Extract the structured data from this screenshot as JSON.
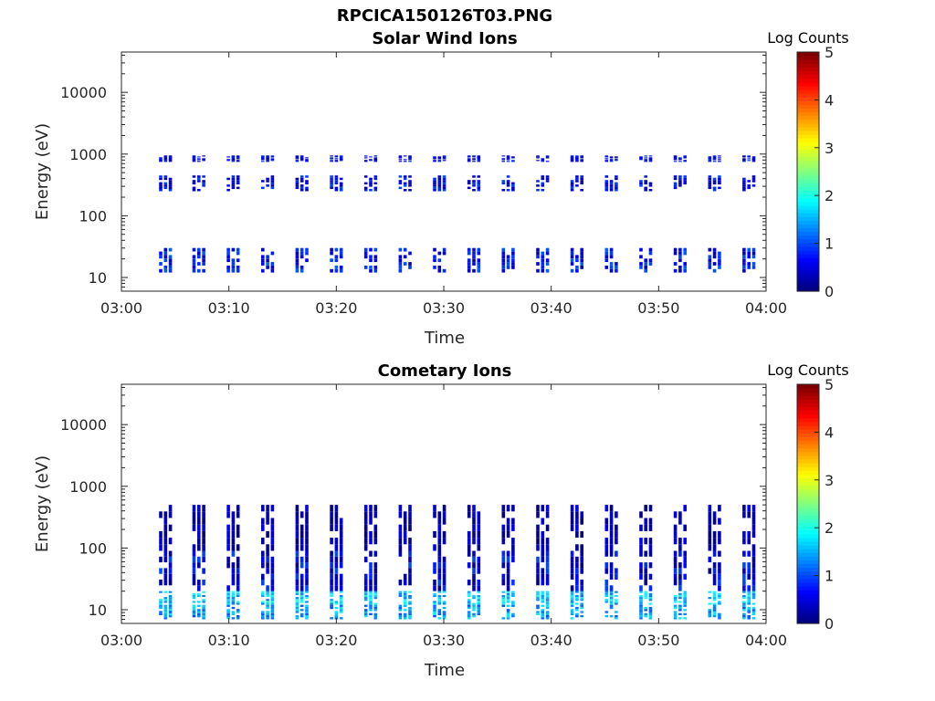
{
  "figure": {
    "title": "RPCICA150126T03.PNG"
  },
  "colors": {
    "axis": "#262626",
    "background": "#ffffff",
    "colormap": "jet"
  },
  "chart_data": [
    {
      "type": "heatmap",
      "title": "Solar Wind Ions",
      "xlabel": "Time",
      "ylabel": "Energy (eV)",
      "x_ticks": [
        "03:00",
        "03:10",
        "03:20",
        "03:30",
        "03:40",
        "03:50",
        "04:00"
      ],
      "x_range_minutes": [
        0,
        60
      ],
      "y_scale": "log",
      "y_ticks": [
        "10",
        "100",
        "1000",
        "10000"
      ],
      "y_range": [
        6,
        45000
      ],
      "colorbar": {
        "label": "Log Counts",
        "ticks": [
          "0",
          "1",
          "2",
          "3",
          "4",
          "5"
        ],
        "range": [
          0,
          5
        ]
      },
      "note_values": "approximate energy bands visible per scan (log counts)",
      "bands": [
        {
          "energy_range": [
            12,
            30
          ],
          "log_counts_range": [
            0.3,
            1.1
          ]
        },
        {
          "energy_range": [
            250,
            450
          ],
          "log_counts_range": [
            0.2,
            1.0
          ]
        },
        {
          "energy_range": [
            750,
            950
          ],
          "log_counts_range": [
            0.2,
            0.9
          ]
        }
      ],
      "scan_times_minutes": [
        3.5,
        6.6,
        9.8,
        13.0,
        16.2,
        19.4,
        22.6,
        25.8,
        29.0,
        32.2,
        35.4,
        38.6,
        41.8,
        45.0,
        48.2,
        51.4,
        54.6,
        57.8
      ]
    },
    {
      "type": "heatmap",
      "title": "Cometary Ions",
      "xlabel": "Time",
      "ylabel": "Energy (eV)",
      "x_ticks": [
        "03:00",
        "03:10",
        "03:20",
        "03:30",
        "03:40",
        "03:50",
        "04:00"
      ],
      "x_range_minutes": [
        0,
        60
      ],
      "y_scale": "log",
      "y_ticks": [
        "10",
        "100",
        "1000",
        "10000"
      ],
      "y_range": [
        6,
        45000
      ],
      "colorbar": {
        "label": "Log Counts",
        "ticks": [
          "0",
          "1",
          "2",
          "3",
          "4",
          "5"
        ],
        "range": [
          0,
          5
        ]
      },
      "note_values": "approximate energy bands visible per scan (log counts)",
      "bands": [
        {
          "energy_range": [
            7,
            12
          ],
          "log_counts_range": [
            1.0,
            1.8
          ]
        },
        {
          "energy_range": [
            12,
            20
          ],
          "log_counts_range": [
            1.2,
            2.0
          ]
        },
        {
          "energy_range": [
            20,
            90
          ],
          "log_counts_range": [
            0.1,
            1.0
          ]
        },
        {
          "energy_range": [
            90,
            500
          ],
          "log_counts_range": [
            0.0,
            0.6
          ]
        }
      ],
      "scan_times_minutes": [
        3.5,
        6.6,
        9.8,
        13.0,
        16.2,
        19.4,
        22.6,
        25.8,
        29.0,
        32.2,
        35.4,
        38.6,
        41.8,
        45.0,
        48.2,
        51.4,
        54.6,
        57.8
      ]
    }
  ]
}
